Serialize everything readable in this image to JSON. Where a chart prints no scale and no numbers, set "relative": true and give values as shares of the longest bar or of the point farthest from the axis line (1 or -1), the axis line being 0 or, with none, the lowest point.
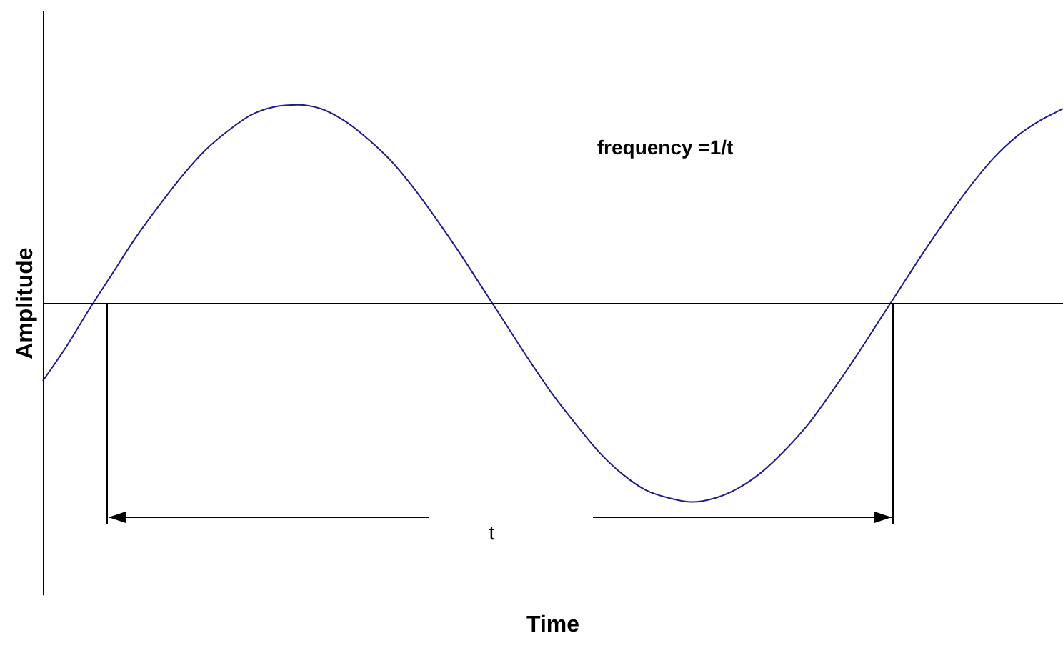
{
  "chart_data": {
    "type": "line",
    "relative": true,
    "xlabel": "Time",
    "ylabel": "Amplitude",
    "color": "#1c1c8c",
    "marker": "none",
    "legend": false,
    "grid": false,
    "annotations": [
      "frequency =1/t",
      "t"
    ],
    "categories": [
      null,
      null,
      null,
      null,
      null,
      null,
      null,
      null,
      null,
      null,
      null,
      null,
      null,
      null,
      null,
      null,
      null,
      null,
      null,
      null,
      null,
      null,
      null,
      null,
      null,
      null,
      null,
      null,
      null,
      null,
      null,
      null,
      null,
      null,
      null,
      null,
      null,
      null,
      null,
      null,
      null,
      null,
      null,
      null,
      null
    ],
    "values": [
      -0.39,
      -0.22,
      -0.03,
      0.15,
      0.33,
      0.49,
      0.64,
      0.77,
      0.87,
      0.95,
      0.99,
      1.0,
      0.98,
      0.92,
      0.83,
      0.72,
      0.58,
      0.42,
      0.25,
      0.07,
      -0.11,
      -0.29,
      -0.46,
      -0.61,
      -0.75,
      -0.86,
      -0.94,
      -0.98,
      -1.0,
      -0.98,
      -0.93,
      -0.85,
      -0.74,
      -0.61,
      -0.45,
      -0.28,
      -0.1,
      0.08,
      0.26,
      0.43,
      0.59,
      0.73,
      0.84,
      0.92,
      0.98
    ]
  }
}
